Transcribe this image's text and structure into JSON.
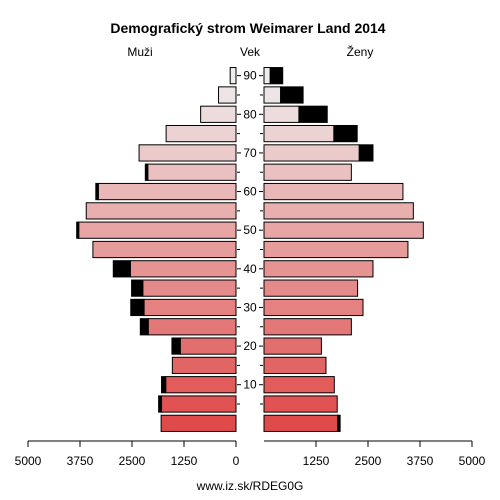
{
  "chart_data": {
    "type": "population-pyramid",
    "title": "Demografický strom Weimarer Land 2014",
    "left_label": "Muži",
    "center_label": "Vek",
    "right_label": "Ženy",
    "footer": "www.iz.sk/RDEG0G",
    "xlim": [
      0,
      5000
    ],
    "x_ticks": [
      5000,
      3750,
      2500,
      1250,
      0,
      1250,
      2500,
      3750,
      5000
    ],
    "age_ticks": [
      10,
      20,
      30,
      40,
      50,
      60,
      70,
      80,
      90
    ],
    "age_groups": [
      "0-4",
      "5-9",
      "10-14",
      "15-19",
      "20-24",
      "25-29",
      "30-34",
      "35-39",
      "40-44",
      "45-49",
      "50-54",
      "55-59",
      "60-64",
      "65-69",
      "70-74",
      "75-79",
      "80-84",
      "85-89",
      "90+"
    ],
    "series": [
      {
        "name": "Muži",
        "side": "left",
        "total": [
          1800,
          1860,
          1790,
          1530,
          1540,
          2300,
          2530,
          2510,
          2950,
          3440,
          3830,
          3600,
          3370,
          2180,
          2330,
          1680,
          850,
          420,
          140
        ],
        "excess": [
          0,
          70,
          100,
          0,
          200,
          190,
          320,
          270,
          410,
          0,
          50,
          0,
          60,
          60,
          0,
          0,
          0,
          0,
          0
        ]
      },
      {
        "name": "Ženy",
        "side": "right",
        "total": [
          1830,
          1760,
          1690,
          1490,
          1380,
          2100,
          2380,
          2250,
          2620,
          3460,
          3830,
          3590,
          3340,
          2100,
          2620,
          2240,
          1520,
          940,
          450
        ],
        "excess": [
          60,
          0,
          0,
          0,
          0,
          0,
          0,
          0,
          0,
          0,
          0,
          0,
          0,
          0,
          330,
          560,
          680,
          540,
          300
        ]
      }
    ],
    "colors": {
      "young": "#e04a4a",
      "old": "#eeeeee",
      "excess": "#000000",
      "outline": "#000000"
    }
  }
}
